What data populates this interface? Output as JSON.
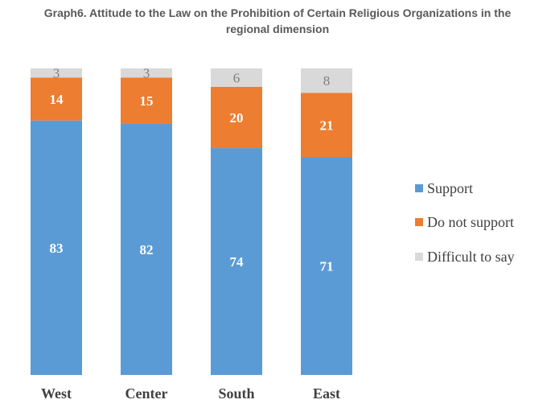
{
  "chart_data": {
    "type": "bar",
    "stacked": true,
    "title_line1": "Graph6. Attitude to the Law on the Prohibition of Certain Religious Organizations in the",
    "title_line2": "regional dimension",
    "categories": [
      "West",
      "Center",
      "South",
      "East"
    ],
    "series": [
      {
        "name": "Support",
        "color": "#5b9bd5",
        "values": [
          83,
          82,
          74,
          71
        ]
      },
      {
        "name": "Do not support",
        "color": "#ed7d31",
        "values": [
          14,
          15,
          20,
          21
        ]
      },
      {
        "name": "Difficult to say",
        "color": "#d9d9d9",
        "values": [
          3,
          3,
          6,
          8
        ]
      }
    ],
    "ylim": [
      0,
      100
    ],
    "legend_position": "right",
    "grid": false
  }
}
